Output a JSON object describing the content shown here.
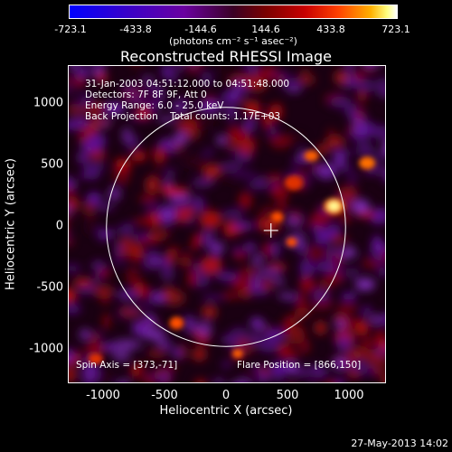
{
  "colorbar": {
    "ticks": [
      "-723.1",
      "-433.8",
      "-144.6",
      "144.6",
      "433.8",
      "723.1"
    ],
    "units": "(photons cm⁻² s⁻¹ asec⁻²)"
  },
  "title": "Reconstructed RHESSI Image",
  "annotations": {
    "line1": "31-Jan-2003 04:51:12.000 to 04:51:48.000",
    "line2": "Detectors: 7F 8F 9F, Att 0",
    "line3": "Energy Range: 6.0 - 25.0 keV",
    "line4": "Back Projection    Total counts: 1.17E+03",
    "spin_axis": "Spin Axis = [373,-71]",
    "flare_position": "Flare Position = [866,150]"
  },
  "axes": {
    "xlabel": "Heliocentric X (arcsec)",
    "ylabel": "Heliocentric Y (arcsec)",
    "xticks": [
      "-1000",
      "-500",
      "0",
      "500",
      "1000"
    ],
    "yticks": [
      "1000",
      "500",
      "0",
      "-500",
      "-1000"
    ]
  },
  "footer": "27-May-2013 14:02"
}
